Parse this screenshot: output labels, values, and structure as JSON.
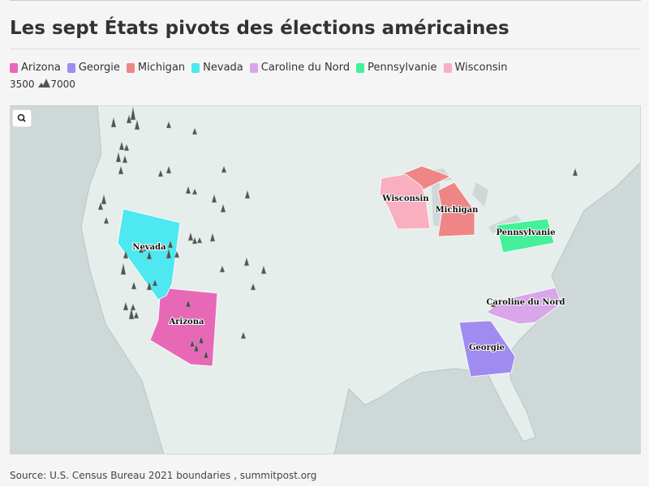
{
  "header": {
    "title": "Les sept États pivots des élections américaines"
  },
  "legend": {
    "items": [
      {
        "label": "Arizona",
        "color": "#e868b8"
      },
      {
        "label": "Georgie",
        "color": "#a08cf0"
      },
      {
        "label": "Michigan",
        "color": "#ef8585"
      },
      {
        "label": "Nevada",
        "color": "#4de8f0"
      },
      {
        "label": "Caroline du Nord",
        "color": "#d9a6ea"
      },
      {
        "label": "Pennsylvanie",
        "color": "#45f09a"
      },
      {
        "label": "Wisconsin",
        "color": "#f9afc0"
      }
    ],
    "size_min": 3500,
    "size_max": 7000
  },
  "footer": {
    "source": "Source: U.S. Census Bureau 2021 boundaries , summitpost.org"
  }
}
